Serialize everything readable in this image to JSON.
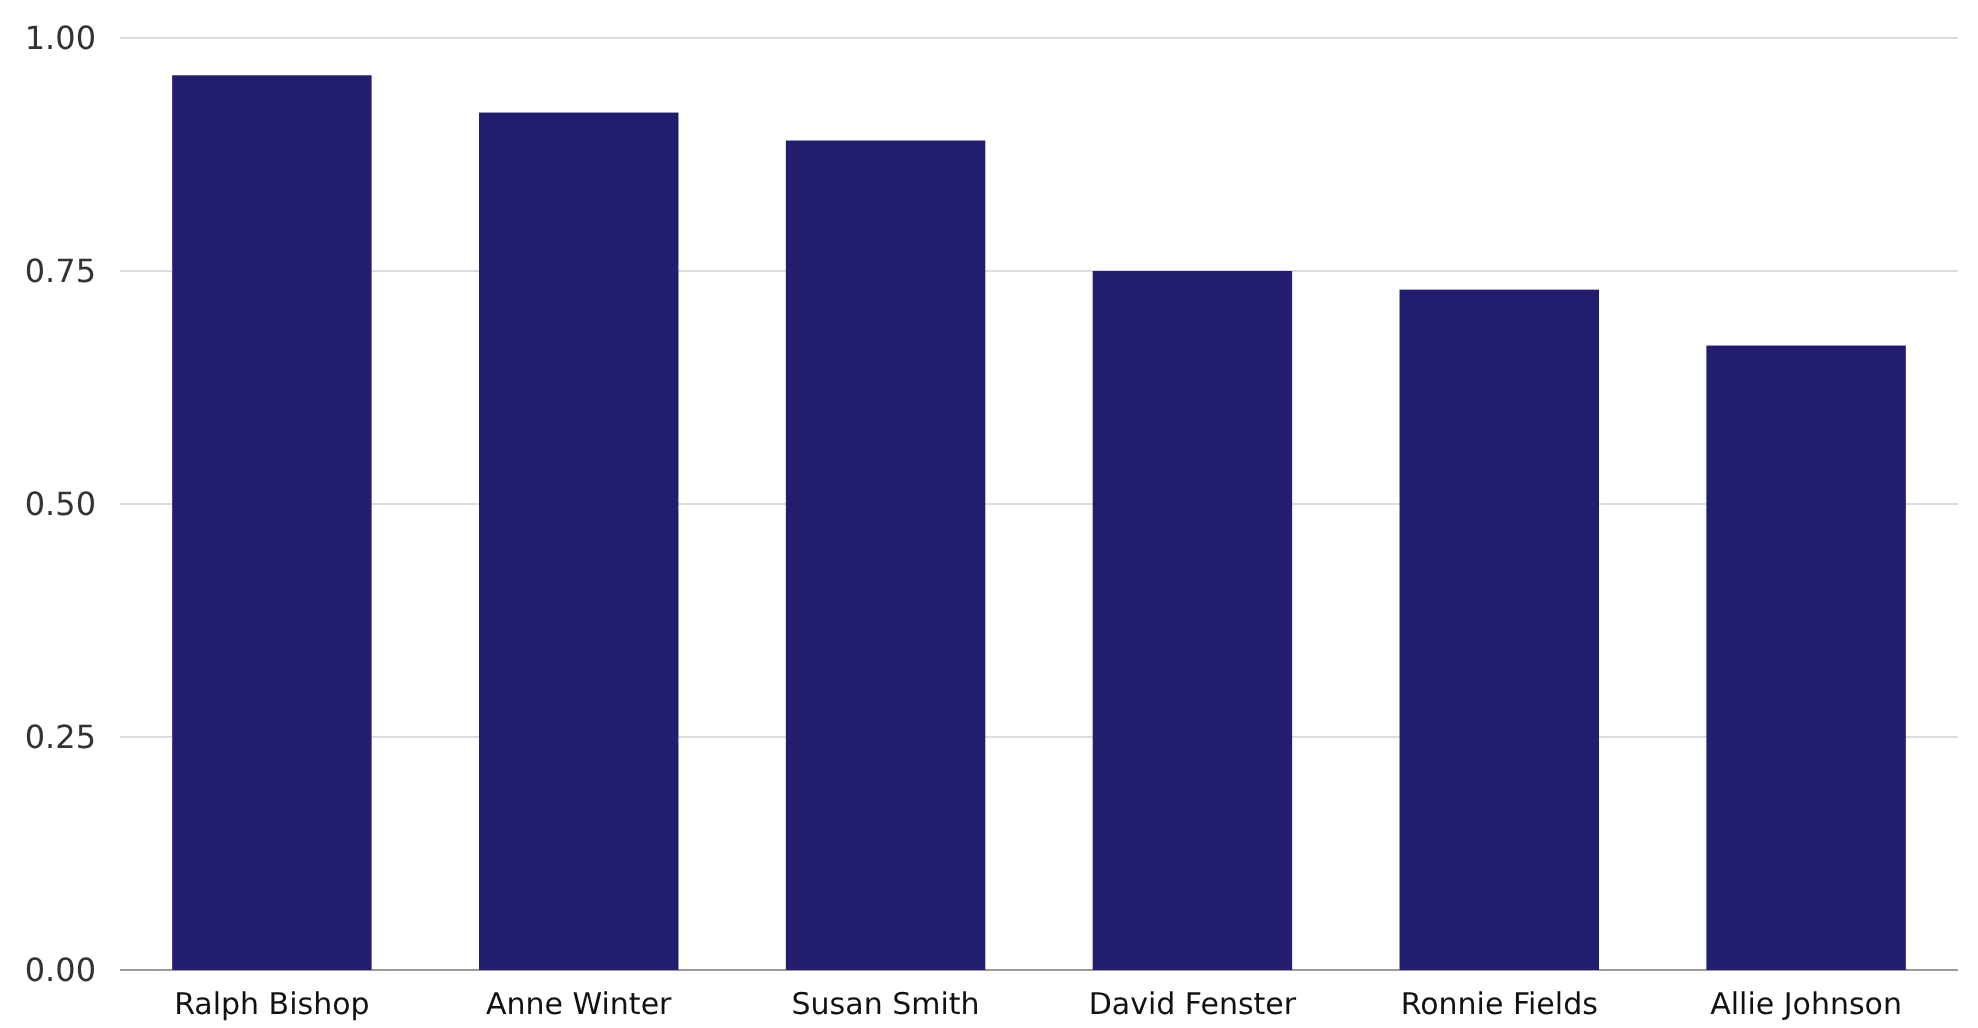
{
  "chart_data": {
    "type": "bar",
    "categories": [
      "Ralph Bishop",
      "Anne Winter",
      "Susan Smith",
      "David Fenster",
      "Ronnie Fields",
      "Allie Johnson"
    ],
    "values": [
      0.96,
      0.92,
      0.89,
      0.75,
      0.73,
      0.67
    ],
    "color": "#231d70",
    "ylim": [
      0,
      1
    ],
    "yticks": [
      {
        "value": 0,
        "label": "0.00"
      },
      {
        "value": 0.25,
        "label": "0.25"
      },
      {
        "value": 0.5,
        "label": "0.50"
      },
      {
        "value": 0.75,
        "label": "0.75"
      },
      {
        "value": 1,
        "label": "1.00"
      }
    ],
    "grid": "y"
  }
}
